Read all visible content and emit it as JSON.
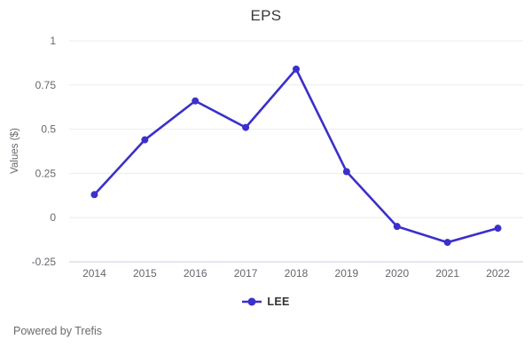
{
  "footer": {
    "powered_by": "Powered by Trefis"
  },
  "chart_data": {
    "type": "line",
    "title": "EPS",
    "xlabel": "",
    "ylabel": "Values ($)",
    "categories": [
      "2014",
      "2015",
      "2016",
      "2017",
      "2018",
      "2019",
      "2020",
      "2021",
      "2022"
    ],
    "series": [
      {
        "name": "LEE",
        "color": "#3b30c9",
        "values": [
          0.13,
          0.44,
          0.66,
          0.51,
          0.84,
          0.26,
          -0.05,
          -0.14,
          -0.06
        ]
      }
    ],
    "ylim": [
      -0.25,
      1
    ],
    "yticks": [
      -0.25,
      0,
      0.25,
      0.5,
      0.75,
      1
    ],
    "ytick_labels": [
      "-0.25",
      "0",
      "0.25",
      "0.5",
      "0.75",
      "1"
    ],
    "grid": true,
    "legend_position": "bottom",
    "colors": {
      "grid": "#ececec",
      "axis_line": "#c8cce0",
      "tick_text": "#65676e",
      "title_text": "#3a3a3a"
    }
  }
}
